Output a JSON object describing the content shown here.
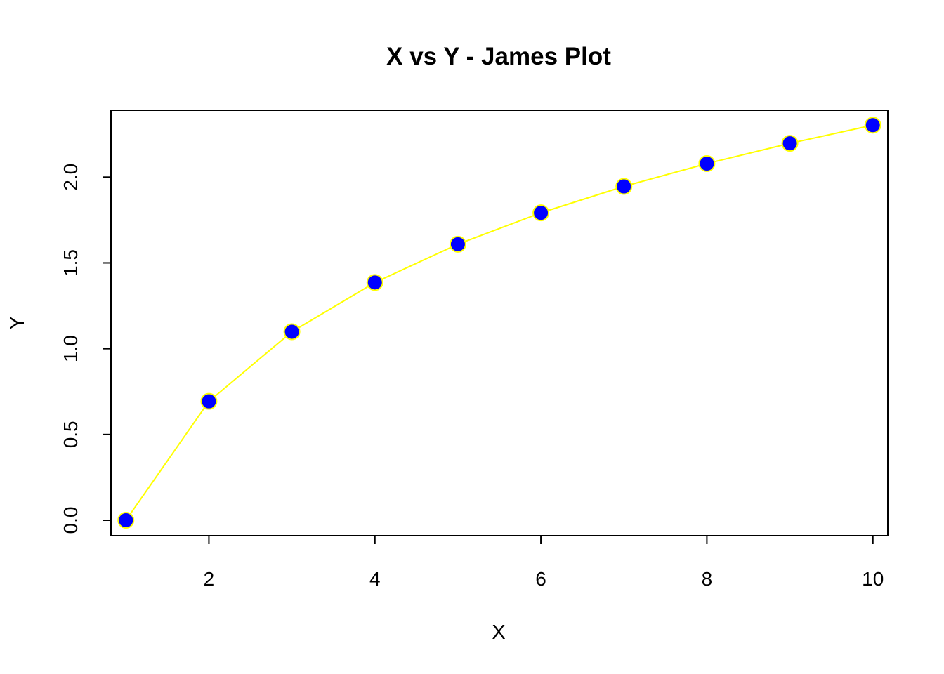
{
  "chart_data": {
    "type": "line",
    "title": "X vs Y - James Plot",
    "xlabel": "X",
    "ylabel": "Y",
    "x": [
      1,
      2,
      3,
      4,
      5,
      6,
      7,
      8,
      9,
      10
    ],
    "series": [
      {
        "values": [
          0.0,
          0.693,
          1.099,
          1.386,
          1.609,
          1.792,
          1.946,
          2.079,
          2.197,
          2.303
        ]
      }
    ],
    "xlim": [
      0.82,
      10.18
    ],
    "ylim": [
      -0.09,
      2.39
    ],
    "x_ticks": [
      2,
      4,
      6,
      8,
      10
    ],
    "x_tick_labels": [
      "2",
      "4",
      "6",
      "8",
      "10"
    ],
    "y_ticks": [
      0.0,
      0.5,
      1.0,
      1.5,
      2.0
    ],
    "y_tick_labels": [
      "0.0",
      "0.5",
      "1.0",
      "1.5",
      "2.0"
    ],
    "grid": false,
    "legend": "none",
    "line_color": "#ffff00",
    "marker_fill": "#0000ff",
    "marker_edge": "#ffff00"
  }
}
